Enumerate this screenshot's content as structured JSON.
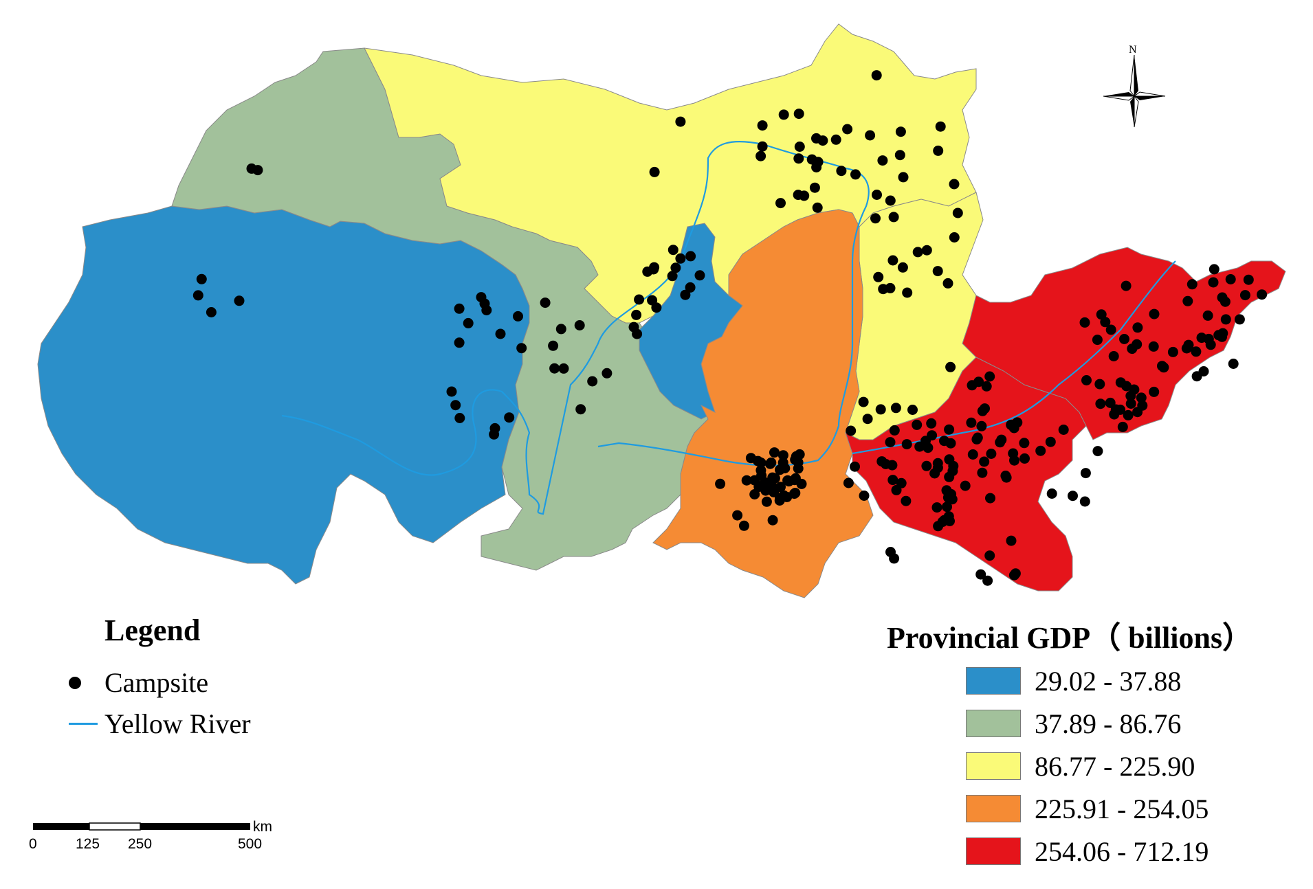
{
  "legend": {
    "title": "Legend",
    "campsite_label": "Campsite",
    "river_label": "Yellow River"
  },
  "gdp_legend": {
    "title": "Provincial GDP（ billions）",
    "classes": [
      {
        "label": "29.02 - 37.88",
        "color": "#2b8fc9"
      },
      {
        "label": "37.89 - 86.76",
        "color": "#a2c19b"
      },
      {
        "label": "86.77 - 225.90",
        "color": "#fafa78"
      },
      {
        "label": "225.91 - 254.05",
        "color": "#f58b34"
      },
      {
        "label": "254.06 - 712.19",
        "color": "#e5141b"
      }
    ]
  },
  "scale_bar": {
    "unit": "km",
    "ticks": [
      "0",
      "125",
      "250",
      "500"
    ]
  },
  "north_arrow": {
    "label": "N"
  },
  "colors": {
    "river": "#1f9be0",
    "campsite": "#000000"
  }
}
